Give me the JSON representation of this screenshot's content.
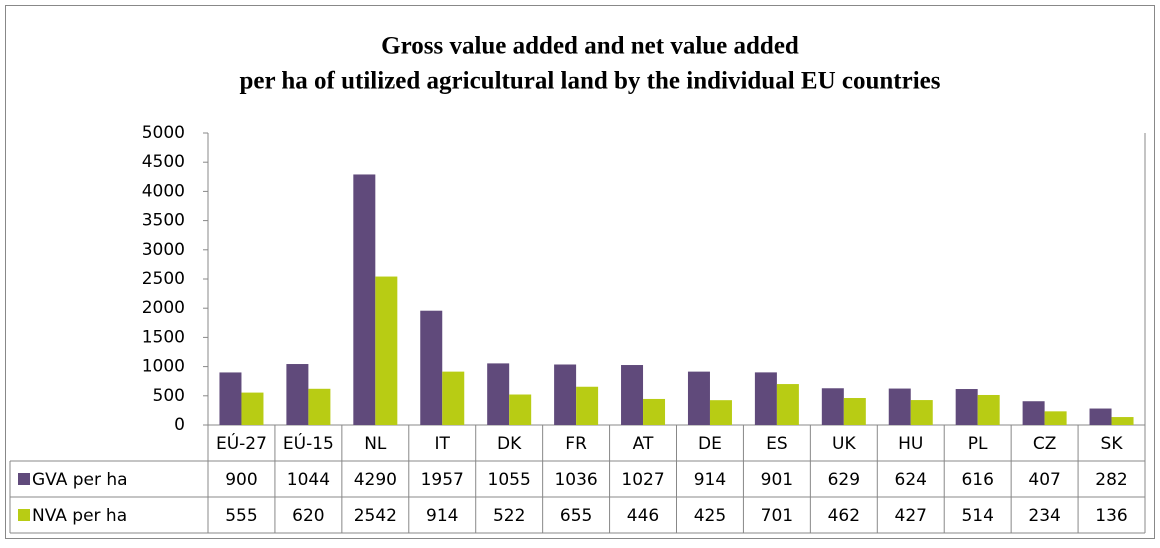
{
  "chart_data": {
    "type": "bar",
    "title": [
      "Gross value added and net value added",
      "per ha of utilized agricultural land by the individual EU countries"
    ],
    "categories": [
      "EÚ-27",
      "EÚ-15",
      "NL",
      "IT",
      "DK",
      "FR",
      "AT",
      "DE",
      "ES",
      "UK",
      "HU",
      "PL",
      "CZ",
      "SK"
    ],
    "series": [
      {
        "name": "GVA per ha",
        "color": "#604a7b",
        "values": [
          900,
          1044,
          4290,
          1957,
          1055,
          1036,
          1027,
          914,
          901,
          629,
          624,
          616,
          407,
          282
        ]
      },
      {
        "name": "NVA per ha",
        "color": "#b8cc14",
        "values": [
          555,
          620,
          2542,
          914,
          522,
          655,
          446,
          425,
          701,
          462,
          427,
          514,
          234,
          136
        ]
      }
    ],
    "ylim": [
      0,
      5000
    ],
    "yticks": [
      0,
      500,
      1000,
      1500,
      2000,
      2500,
      3000,
      3500,
      4000,
      4500,
      5000
    ],
    "grid": false
  }
}
